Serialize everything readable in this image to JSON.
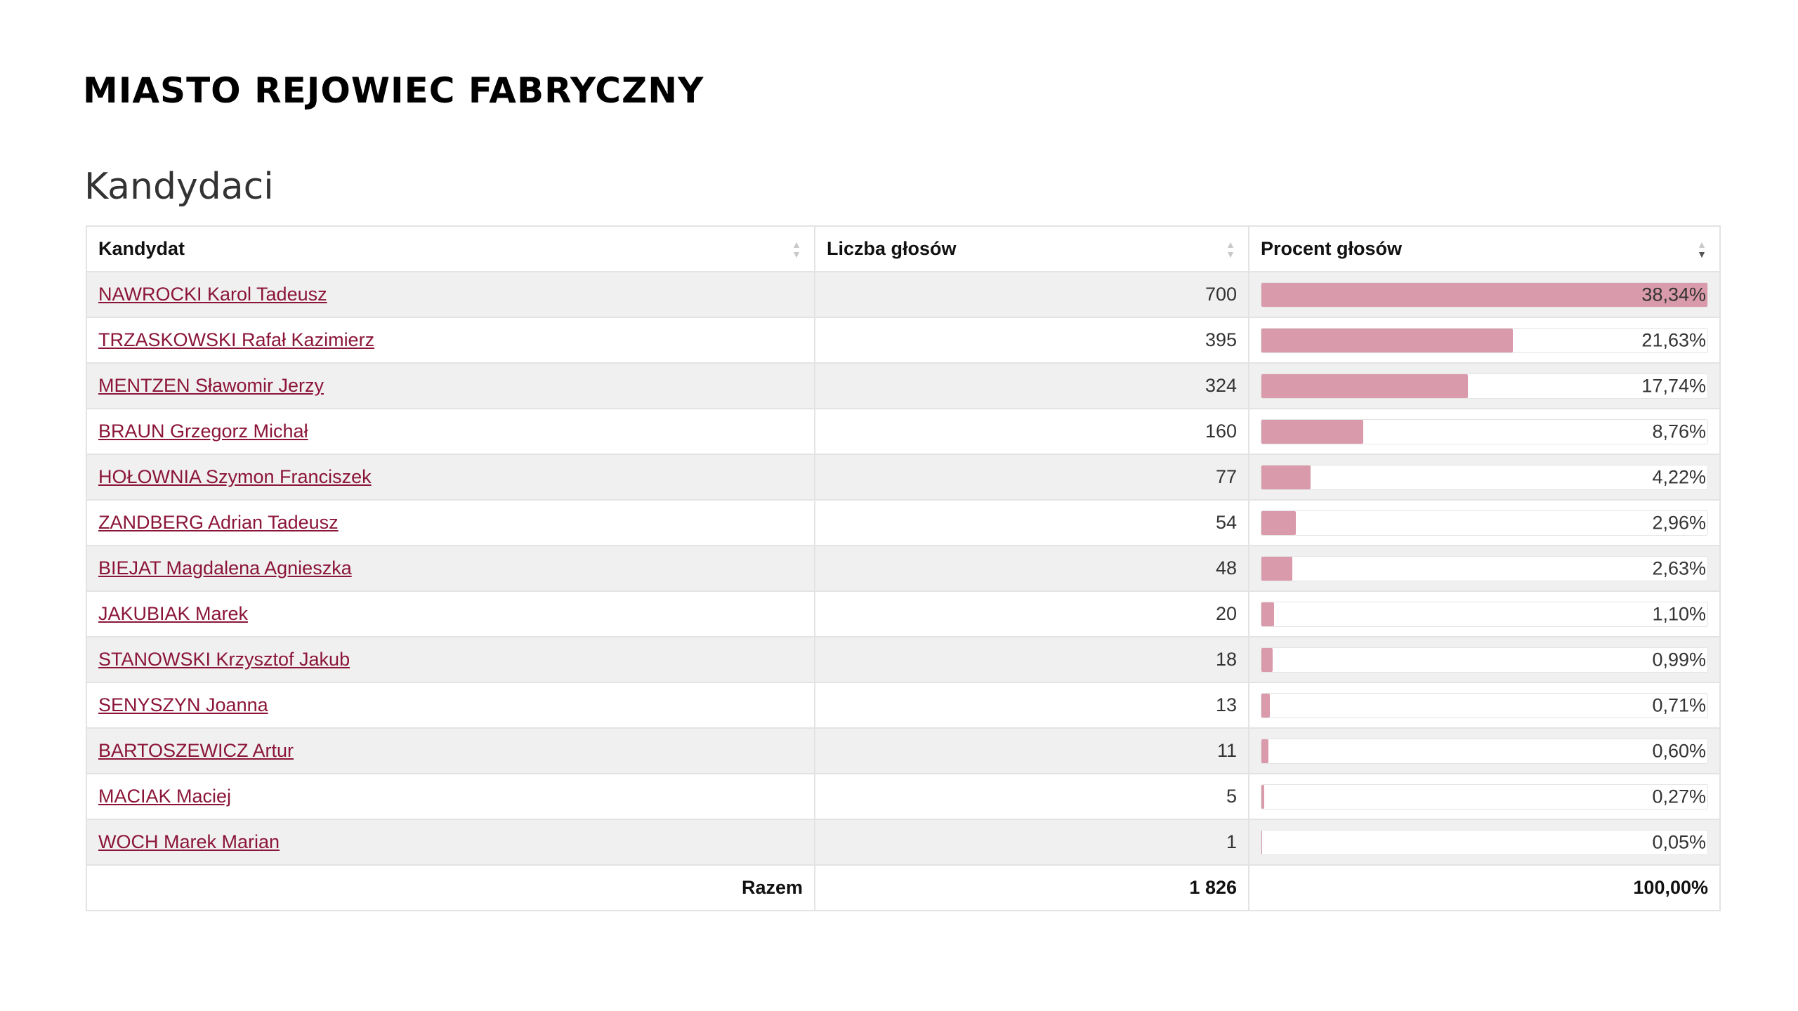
{
  "page": {
    "title": "MIASTO REJOWIEC FABRYCZNY",
    "section_title": "Kandydaci"
  },
  "table": {
    "headers": {
      "candidate": "Kandydat",
      "votes": "Liczba głosów",
      "percent": "Procent głosów"
    },
    "sort": {
      "column": "percent",
      "direction": "desc"
    },
    "rows": [
      {
        "name": "NAWROCKI Karol Tadeusz",
        "votes": "700",
        "percent_label": "38,34%",
        "share": 0.3834
      },
      {
        "name": "TRZASKOWSKI Rafał Kazimierz",
        "votes": "395",
        "percent_label": "21,63%",
        "share": 0.2163
      },
      {
        "name": "MENTZEN Sławomir Jerzy",
        "votes": "324",
        "percent_label": "17,74%",
        "share": 0.1774
      },
      {
        "name": "BRAUN Grzegorz Michał",
        "votes": "160",
        "percent_label": "8,76%",
        "share": 0.0876
      },
      {
        "name": "HOŁOWNIA Szymon Franciszek",
        "votes": "77",
        "percent_label": "4,22%",
        "share": 0.0422
      },
      {
        "name": "ZANDBERG Adrian Tadeusz",
        "votes": "54",
        "percent_label": "2,96%",
        "share": 0.0296
      },
      {
        "name": "BIEJAT Magdalena Agnieszka",
        "votes": "48",
        "percent_label": "2,63%",
        "share": 0.0263
      },
      {
        "name": "JAKUBIAK Marek",
        "votes": "20",
        "percent_label": "1,10%",
        "share": 0.011
      },
      {
        "name": "STANOWSKI Krzysztof Jakub",
        "votes": "18",
        "percent_label": "0,99%",
        "share": 0.0099
      },
      {
        "name": "SENYSZYN Joanna",
        "votes": "13",
        "percent_label": "0,71%",
        "share": 0.0071
      },
      {
        "name": "BARTOSZEWICZ Artur",
        "votes": "11",
        "percent_label": "0,60%",
        "share": 0.006
      },
      {
        "name": "MACIAK Maciej",
        "votes": "5",
        "percent_label": "0,27%",
        "share": 0.0027
      },
      {
        "name": "WOCH Marek Marian",
        "votes": "1",
        "percent_label": "0,05%",
        "share": 0.0005
      }
    ],
    "footer": {
      "label": "Razem",
      "votes": "1 826",
      "percent": "100,00%"
    }
  },
  "colors": {
    "link": "#8b1538",
    "bar_fill": "#d99aab",
    "row_stripe": "#f1f0f1"
  },
  "icons": {
    "sort_neutral": "sort-both-icon",
    "sort_desc": "sort-desc-icon"
  }
}
